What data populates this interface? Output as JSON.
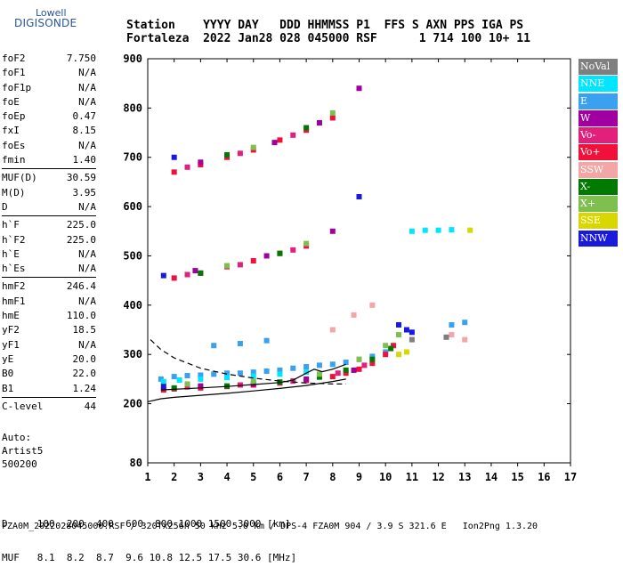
{
  "logo": {
    "line1": "Lowell",
    "line2": "DIGISONDE"
  },
  "header": {
    "line1": "Station    YYYY DAY   DDD HHMMSS P1  FFS S AXN PPS IGA PS",
    "line2": "Fortaleza  2022 Jan28 028 045000 RSF      1 714 100 10+ 11"
  },
  "params": [
    {
      "label": "foF2",
      "value": "7.750"
    },
    {
      "label": "foF1",
      "value": "N/A"
    },
    {
      "label": "foF1p",
      "value": "N/A"
    },
    {
      "label": "foE",
      "value": "N/A"
    },
    {
      "label": "foEp",
      "value": "0.47"
    },
    {
      "label": "fxI",
      "value": "8.15"
    },
    {
      "label": "foEs",
      "value": "N/A"
    },
    {
      "label": "fmin",
      "value": "1.40"
    },
    {
      "sep": true
    },
    {
      "label": "MUF(D)",
      "value": "30.59"
    },
    {
      "label": "M(D)",
      "value": "3.95"
    },
    {
      "label": "D",
      "value": "N/A"
    },
    {
      "sep": true
    },
    {
      "label": "h`F",
      "value": "225.0"
    },
    {
      "label": "h`F2",
      "value": "225.0"
    },
    {
      "label": "h`E",
      "value": "N/A"
    },
    {
      "label": "h`Es",
      "value": "N/A"
    },
    {
      "sep": true
    },
    {
      "label": "hmF2",
      "value": "246.4"
    },
    {
      "label": "hmF1",
      "value": "N/A"
    },
    {
      "label": "hmE",
      "value": "110.0"
    },
    {
      "label": "yF2",
      "value": "18.5"
    },
    {
      "label": "yF1",
      "value": "N/A"
    },
    {
      "label": "yE",
      "value": "20.0"
    },
    {
      "label": "B0",
      "value": "22.0"
    },
    {
      "label": "B1",
      "value": "1.24"
    },
    {
      "sep": true
    },
    {
      "label": "C-level",
      "value": "44"
    }
  ],
  "auto": {
    "line1": "Auto:",
    "line2": "Artist5",
    "line3": "500200"
  },
  "legend": [
    {
      "label": "NoVal",
      "color": "#7f7f7f"
    },
    {
      "label": "NNE",
      "color": "#00e6ff"
    },
    {
      "label": "E",
      "color": "#3aa0f0"
    },
    {
      "label": "W",
      "color": "#a000a0"
    },
    {
      "label": "Vo-",
      "color": "#e0207a"
    },
    {
      "label": "Vo+",
      "color": "#f0103a"
    },
    {
      "label": "SSW",
      "color": "#f4a6a6"
    },
    {
      "label": "X-",
      "color": "#007a00"
    },
    {
      "label": "X+",
      "color": "#7fbf4f"
    },
    {
      "label": "SSE",
      "color": "#d8d800"
    },
    {
      "label": "NNW",
      "color": "#1a1adc"
    }
  ],
  "footer": {
    "line1": "D     100  200  400  600  800 1000 1500 3000 [km]",
    "line2": "MUF   8.1  8.2  8.7  9.6 10.8 12.5 17.5 30.6 [MHz]",
    "line3": "FZA0M_2022028045000.RSF / 320fx256h 50 kHz 5.0 km / DPS-4 FZA0M 904 / 3.9 S 321.6 E   Ion2Png 1.3.20"
  },
  "chart_data": {
    "type": "scatter",
    "title": "",
    "xlabel": "",
    "ylabel": "",
    "xlim": [
      1,
      17
    ],
    "ylim": [
      80,
      900
    ],
    "x_ticks": [
      1,
      2,
      3,
      4,
      5,
      6,
      7,
      8,
      9,
      10,
      11,
      12,
      13,
      14,
      15,
      16,
      17
    ],
    "y_ticks": [
      80,
      200,
      300,
      400,
      500,
      600,
      700,
      800,
      900
    ],
    "series": [
      {
        "name": "E",
        "color": "#3aa0f0",
        "points": [
          [
            1.5,
            250
          ],
          [
            2,
            255
          ],
          [
            2.5,
            257
          ],
          [
            3,
            258
          ],
          [
            3.5,
            260
          ],
          [
            4,
            262
          ],
          [
            4.5,
            262
          ],
          [
            5,
            264
          ],
          [
            5.5,
            266
          ],
          [
            6,
            268
          ],
          [
            6.5,
            272
          ],
          [
            7,
            275
          ],
          [
            7.5,
            278
          ],
          [
            8,
            280
          ],
          [
            8.5,
            284
          ],
          [
            9,
            290
          ],
          [
            9.5,
            296
          ],
          [
            10,
            305
          ],
          [
            3.5,
            318
          ],
          [
            4.5,
            322
          ],
          [
            5.5,
            328
          ],
          [
            12.5,
            360
          ],
          [
            13,
            365
          ]
        ]
      },
      {
        "name": "NNE",
        "color": "#00e6ff",
        "points": [
          [
            1.6,
            245
          ],
          [
            2.2,
            248
          ],
          [
            3,
            250
          ],
          [
            4,
            253
          ],
          [
            5,
            256
          ],
          [
            6,
            260
          ],
          [
            7,
            264
          ],
          [
            11,
            550
          ],
          [
            11.5,
            552
          ],
          [
            12,
            552
          ],
          [
            12.5,
            553
          ]
        ]
      },
      {
        "name": "Vo+",
        "color": "#f0103a",
        "points": [
          [
            1.6,
            228
          ],
          [
            2,
            230
          ],
          [
            3,
            232
          ],
          [
            4,
            235
          ],
          [
            5,
            238
          ],
          [
            6,
            242
          ],
          [
            7,
            247
          ],
          [
            8,
            255
          ],
          [
            8.5,
            262
          ],
          [
            9,
            270
          ],
          [
            9.5,
            282
          ],
          [
            10,
            300
          ],
          [
            10.3,
            318
          ],
          [
            2,
            455
          ],
          [
            3,
            465
          ],
          [
            4,
            478
          ],
          [
            5,
            490
          ],
          [
            6,
            505
          ],
          [
            7,
            520
          ],
          [
            2,
            670
          ],
          [
            3,
            685
          ],
          [
            4,
            700
          ],
          [
            5,
            715
          ],
          [
            6,
            735
          ],
          [
            7,
            755
          ],
          [
            8,
            780
          ]
        ]
      },
      {
        "name": "Vo-",
        "color": "#e0207a",
        "points": [
          [
            2.5,
            234
          ],
          [
            4.5,
            238
          ],
          [
            6.5,
            246
          ],
          [
            8.2,
            262
          ],
          [
            9.2,
            278
          ],
          [
            2.5,
            462
          ],
          [
            4.5,
            482
          ],
          [
            6.5,
            512
          ],
          [
            2.5,
            680
          ],
          [
            4.5,
            708
          ],
          [
            6.5,
            745
          ]
        ]
      },
      {
        "name": "W",
        "color": "#a000a0",
        "points": [
          [
            3,
            236
          ],
          [
            5,
            240
          ],
          [
            7,
            250
          ],
          [
            8.8,
            268
          ],
          [
            2.8,
            470
          ],
          [
            5.5,
            500
          ],
          [
            8,
            550
          ],
          [
            3,
            690
          ],
          [
            5.8,
            730
          ],
          [
            7.5,
            770
          ],
          [
            9,
            840
          ]
        ]
      },
      {
        "name": "X-",
        "color": "#007a00",
        "points": [
          [
            2,
            232
          ],
          [
            4,
            236
          ],
          [
            6,
            244
          ],
          [
            7.5,
            254
          ],
          [
            8.5,
            268
          ],
          [
            9.5,
            290
          ],
          [
            10.2,
            312
          ],
          [
            3,
            465
          ],
          [
            6,
            505
          ],
          [
            4,
            705
          ],
          [
            7,
            760
          ]
        ]
      },
      {
        "name": "X+",
        "color": "#7fbf4f",
        "points": [
          [
            2.5,
            240
          ],
          [
            5,
            245
          ],
          [
            7.5,
            260
          ],
          [
            9,
            290
          ],
          [
            10,
            318
          ],
          [
            10.5,
            340
          ],
          [
            4,
            480
          ],
          [
            7,
            525
          ],
          [
            5,
            720
          ],
          [
            8,
            790
          ]
        ]
      },
      {
        "name": "SSW",
        "color": "#f4a6a6",
        "points": [
          [
            8,
            350
          ],
          [
            8.8,
            380
          ],
          [
            9.5,
            400
          ],
          [
            12.5,
            340
          ],
          [
            13,
            330
          ]
        ]
      },
      {
        "name": "SSE",
        "color": "#d8d800",
        "points": [
          [
            10.5,
            300
          ],
          [
            10.8,
            305
          ],
          [
            13.2,
            552
          ]
        ]
      },
      {
        "name": "NNW",
        "color": "#1a1adc",
        "points": [
          [
            1.6,
            235
          ],
          [
            10.5,
            360
          ],
          [
            10.8,
            350
          ],
          [
            11,
            345
          ],
          [
            1.6,
            460
          ],
          [
            2,
            700
          ],
          [
            9,
            620
          ]
        ]
      },
      {
        "name": "NoVal",
        "color": "#7f7f7f",
        "points": [
          [
            11,
            330
          ],
          [
            12.3,
            335
          ]
        ]
      }
    ],
    "curves": [
      {
        "style": "solid",
        "points": [
          [
            1,
            204
          ],
          [
            1.5,
            210
          ],
          [
            2,
            213
          ],
          [
            3,
            217
          ],
          [
            4,
            221
          ],
          [
            5,
            226
          ],
          [
            6,
            231
          ],
          [
            7,
            237
          ],
          [
            8,
            245
          ],
          [
            8.5,
            250
          ]
        ]
      },
      {
        "style": "dashed",
        "points": [
          [
            1.1,
            330
          ],
          [
            1.5,
            310
          ],
          [
            2,
            293
          ],
          [
            3,
            272
          ],
          [
            4,
            260
          ],
          [
            5,
            252
          ],
          [
            6,
            246
          ],
          [
            7,
            242
          ],
          [
            8,
            240
          ],
          [
            8.5,
            240
          ]
        ]
      },
      {
        "style": "solid",
        "points": [
          [
            1.5,
            228
          ],
          [
            3,
            232
          ],
          [
            4,
            235
          ],
          [
            5,
            239
          ],
          [
            6,
            243
          ],
          [
            6.5,
            248
          ],
          [
            7,
            262
          ],
          [
            7.3,
            270
          ],
          [
            7.6,
            265
          ],
          [
            8,
            270
          ],
          [
            8.5,
            280
          ]
        ]
      }
    ]
  }
}
